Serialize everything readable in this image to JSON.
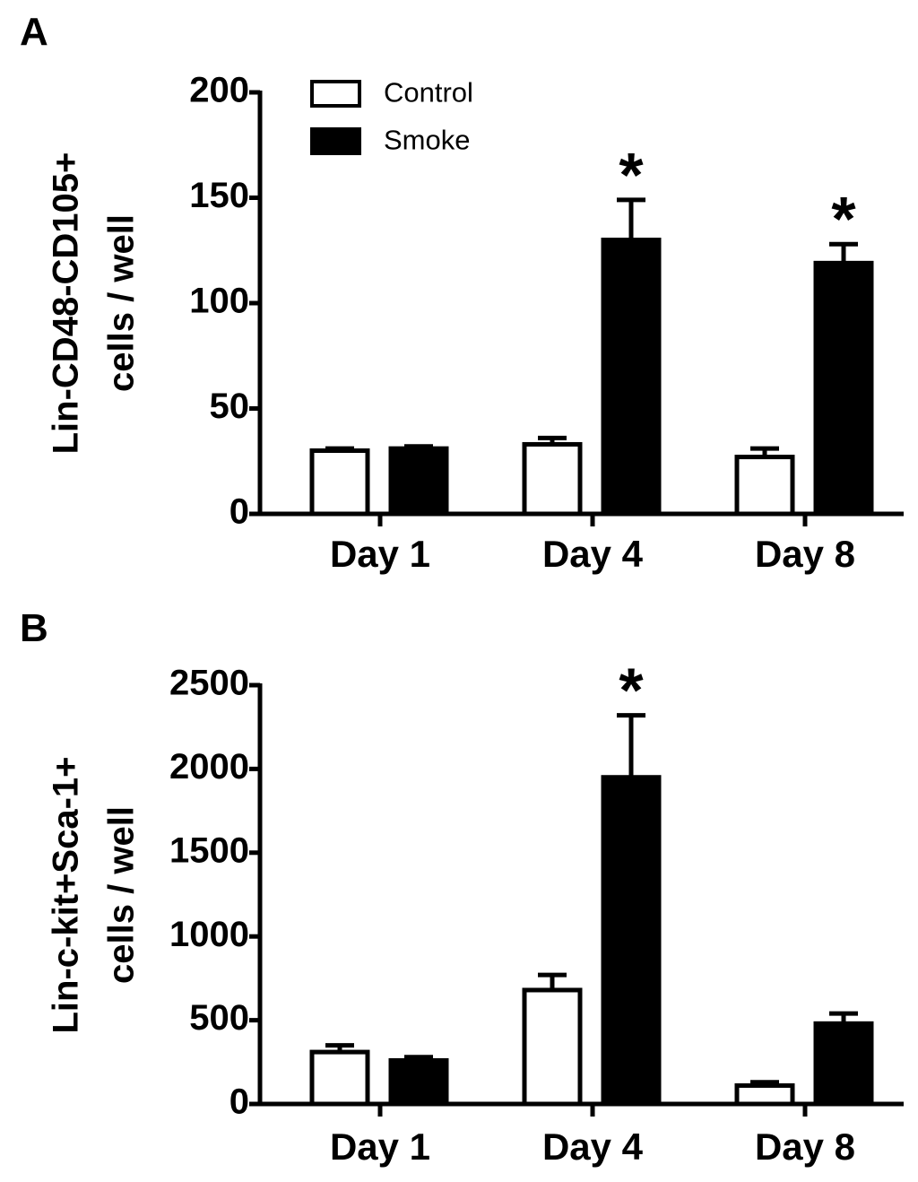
{
  "chart_data": [
    {
      "type": "bar",
      "panel_label": "A",
      "categories": [
        "Day 1",
        "Day 4",
        "Day 8"
      ],
      "series": [
        {
          "name": "Control",
          "color": "#ffffff",
          "values": [
            30,
            33,
            27
          ],
          "errors": [
            1,
            3,
            4
          ]
        },
        {
          "name": "Smoke",
          "color": "#000000",
          "values": [
            31,
            130,
            119
          ],
          "errors": [
            1,
            19,
            9
          ]
        }
      ],
      "significance": [
        {
          "category": "Day 4",
          "series": "Smoke",
          "label": "*"
        },
        {
          "category": "Day 8",
          "series": "Smoke",
          "label": "*"
        }
      ],
      "ylabel_lines": [
        "Lin-CD48-CD105+",
        "cells / well"
      ],
      "xlabel": "",
      "ylim": [
        0,
        200
      ],
      "yticks": [
        0,
        50,
        100,
        150,
        200
      ],
      "legend_position": "top-left",
      "grid": false
    },
    {
      "type": "bar",
      "panel_label": "B",
      "categories": [
        "Day 1",
        "Day 4",
        "Day 8"
      ],
      "series": [
        {
          "name": "Control",
          "color": "#ffffff",
          "values": [
            310,
            680,
            110
          ],
          "errors": [
            40,
            90,
            20
          ]
        },
        {
          "name": "Smoke",
          "color": "#000000",
          "values": [
            260,
            1950,
            480
          ],
          "errors": [
            20,
            370,
            60
          ]
        }
      ],
      "significance": [
        {
          "category": "Day 4",
          "series": "Smoke",
          "label": "*"
        }
      ],
      "ylabel_lines": [
        "Lin-c-kit+Sca-1+",
        "cells / well"
      ],
      "xlabel": "",
      "ylim": [
        0,
        2500
      ],
      "yticks": [
        0,
        500,
        1000,
        1500,
        2000,
        2500
      ],
      "grid": false
    }
  ]
}
